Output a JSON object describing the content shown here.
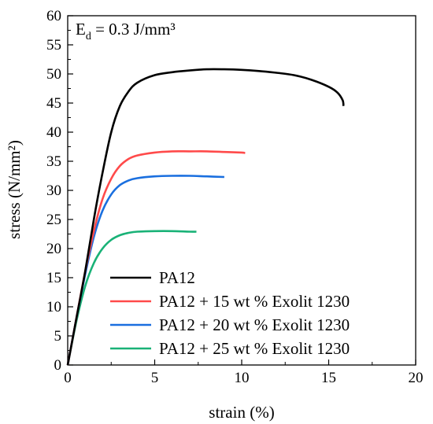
{
  "chart_data": {
    "type": "line",
    "xlabel": "strain (%)",
    "ylabel": "stress (N/mm²)",
    "xlim": [
      0,
      20
    ],
    "ylim": [
      0,
      60
    ],
    "xticks": [
      0,
      5,
      10,
      15,
      20
    ],
    "yticks": [
      0,
      5,
      10,
      15,
      20,
      25,
      30,
      35,
      40,
      45,
      50,
      55,
      60
    ],
    "grid": false,
    "legend_position": "bottom-right",
    "annotation": {
      "base": "E",
      "subscript": "d",
      "rest": " = 0.3 J/mm³"
    },
    "series": [
      {
        "name": "PA12",
        "color": "#000000",
        "points": [
          [
            0,
            0
          ],
          [
            0.5,
            8
          ],
          [
            1,
            16
          ],
          [
            1.5,
            25
          ],
          [
            2,
            33
          ],
          [
            2.5,
            40
          ],
          [
            3,
            44.5
          ],
          [
            3.5,
            47
          ],
          [
            4,
            48.5
          ],
          [
            5,
            49.8
          ],
          [
            6,
            50.3
          ],
          [
            7,
            50.6
          ],
          [
            8,
            50.8
          ],
          [
            9,
            50.8
          ],
          [
            10,
            50.7
          ],
          [
            11,
            50.5
          ],
          [
            12,
            50.2
          ],
          [
            13,
            49.8
          ],
          [
            14,
            49.0
          ],
          [
            15,
            47.8
          ],
          [
            15.5,
            46.8
          ],
          [
            15.8,
            45.5
          ],
          [
            15.85,
            44.5
          ]
        ]
      },
      {
        "name": "PA12 + 15 wt % Exolit 1230",
        "color": "#ff4a4a",
        "points": [
          [
            0,
            0
          ],
          [
            0.5,
            8
          ],
          [
            1,
            16
          ],
          [
            1.5,
            23
          ],
          [
            2,
            28.5
          ],
          [
            2.5,
            32
          ],
          [
            3,
            34.2
          ],
          [
            3.5,
            35.4
          ],
          [
            4,
            36.0
          ],
          [
            5,
            36.5
          ],
          [
            6,
            36.7
          ],
          [
            7,
            36.7
          ],
          [
            8,
            36.7
          ],
          [
            9,
            36.6
          ],
          [
            10,
            36.5
          ],
          [
            10.2,
            36.4
          ]
        ]
      },
      {
        "name": "PA12 + 20 wt % Exolit 1230",
        "color": "#1a6fdf",
        "points": [
          [
            0,
            0
          ],
          [
            0.5,
            8
          ],
          [
            1,
            15.5
          ],
          [
            1.5,
            22
          ],
          [
            2,
            26.5
          ],
          [
            2.5,
            29.3
          ],
          [
            3,
            30.9
          ],
          [
            3.5,
            31.7
          ],
          [
            4,
            32.1
          ],
          [
            5,
            32.4
          ],
          [
            6,
            32.5
          ],
          [
            7,
            32.5
          ],
          [
            8,
            32.4
          ],
          [
            9,
            32.3
          ]
        ]
      },
      {
        "name": "PA12 + 25 wt % Exolit 1230",
        "color": "#19b277",
        "points": [
          [
            0,
            0
          ],
          [
            0.5,
            7.5
          ],
          [
            1,
            13.5
          ],
          [
            1.5,
            17.5
          ],
          [
            2,
            20
          ],
          [
            2.5,
            21.5
          ],
          [
            3,
            22.3
          ],
          [
            3.5,
            22.7
          ],
          [
            4,
            22.9
          ],
          [
            5,
            23.0
          ],
          [
            6,
            23.0
          ],
          [
            7,
            22.9
          ],
          [
            7.4,
            22.9
          ]
        ]
      }
    ]
  }
}
